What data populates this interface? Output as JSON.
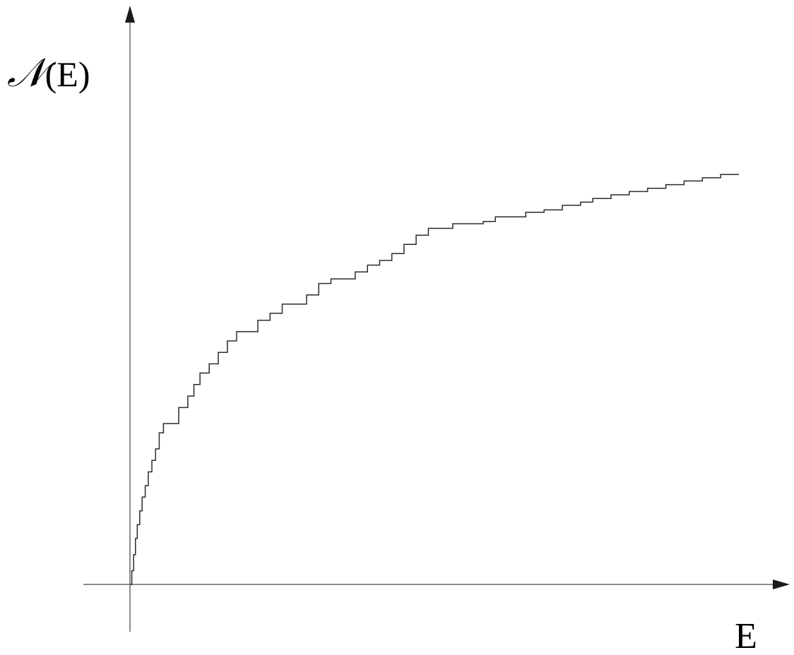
{
  "chart_data": {
    "type": "line",
    "title": "",
    "xlabel": "E",
    "ylabel_script": "𝒩",
    "ylabel_arg": "(E)",
    "grid": false,
    "legend": "none",
    "x_ticks": [],
    "y_ticks": [],
    "xlim": [
      0,
      1
    ],
    "ylim": [
      0,
      1
    ],
    "series": [
      {
        "color": "#2b2b2b",
        "step": true,
        "x": [
          0.0,
          0.003,
          0.006,
          0.009,
          0.012,
          0.016,
          0.02,
          0.025,
          0.03,
          0.036,
          0.042,
          0.048,
          0.055,
          0.06,
          0.08,
          0.095,
          0.105,
          0.115,
          0.13,
          0.145,
          0.16,
          0.175,
          0.19,
          0.21,
          0.23,
          0.25,
          0.27,
          0.29,
          0.31,
          0.33,
          0.35,
          0.37,
          0.39,
          0.41,
          0.43,
          0.45,
          0.47,
          0.49,
          0.51,
          0.53,
          0.56,
          0.58,
          0.6,
          0.62,
          0.65,
          0.68,
          0.71,
          0.74,
          0.76,
          0.79,
          0.82,
          0.85,
          0.88,
          0.91,
          0.94,
          0.97,
          1.0
        ],
        "y": [
          0.0,
          0.03,
          0.065,
          0.1,
          0.13,
          0.16,
          0.19,
          0.215,
          0.245,
          0.27,
          0.295,
          0.33,
          0.35,
          0.35,
          0.385,
          0.41,
          0.435,
          0.46,
          0.48,
          0.505,
          0.53,
          0.55,
          0.55,
          0.575,
          0.59,
          0.61,
          0.61,
          0.63,
          0.655,
          0.665,
          0.665,
          0.68,
          0.695,
          0.705,
          0.72,
          0.74,
          0.76,
          0.775,
          0.775,
          0.785,
          0.785,
          0.79,
          0.8,
          0.8,
          0.81,
          0.815,
          0.825,
          0.832,
          0.84,
          0.848,
          0.855,
          0.862,
          0.87,
          0.878,
          0.885,
          0.892,
          0.892
        ]
      }
    ]
  }
}
